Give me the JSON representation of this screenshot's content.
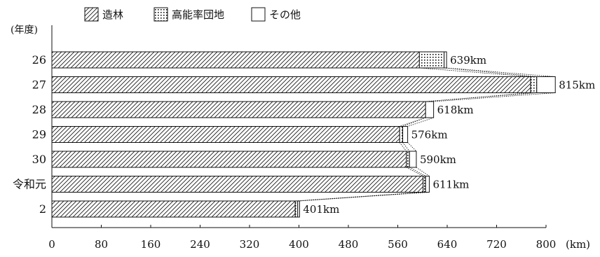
{
  "chart_data": {
    "type": "bar",
    "orientation": "horizontal",
    "stacked": true,
    "legend_position": "top",
    "grid": false,
    "y_axis_label": "(年度)",
    "x_axis_unit": "(km)",
    "xlim": [
      0,
      800
    ],
    "x_ticks": [
      "0",
      "80",
      "160",
      "240",
      "320",
      "400",
      "480",
      "560",
      "640",
      "720",
      "800"
    ],
    "categories": [
      "26",
      "27",
      "28",
      "29",
      "30",
      "令和元",
      "2"
    ],
    "series": [
      {
        "name": "造林",
        "pattern": "diagonal-hatch",
        "values": [
          595,
          775,
          605,
          563,
          574,
          601,
          394
        ]
      },
      {
        "name": "高能率団地",
        "pattern": "dots",
        "values": [
          40,
          10,
          0,
          5,
          5,
          4,
          4
        ]
      },
      {
        "name": "その他",
        "pattern": "blank",
        "values": [
          4,
          30,
          13,
          8,
          11,
          6,
          3
        ]
      }
    ],
    "totals": [
      639,
      815,
      618,
      576,
      590,
      611,
      401
    ],
    "total_labels": [
      "639km",
      "815km",
      "618km",
      "576km",
      "590km",
      "611km",
      "401km"
    ],
    "connector_lines": true
  }
}
